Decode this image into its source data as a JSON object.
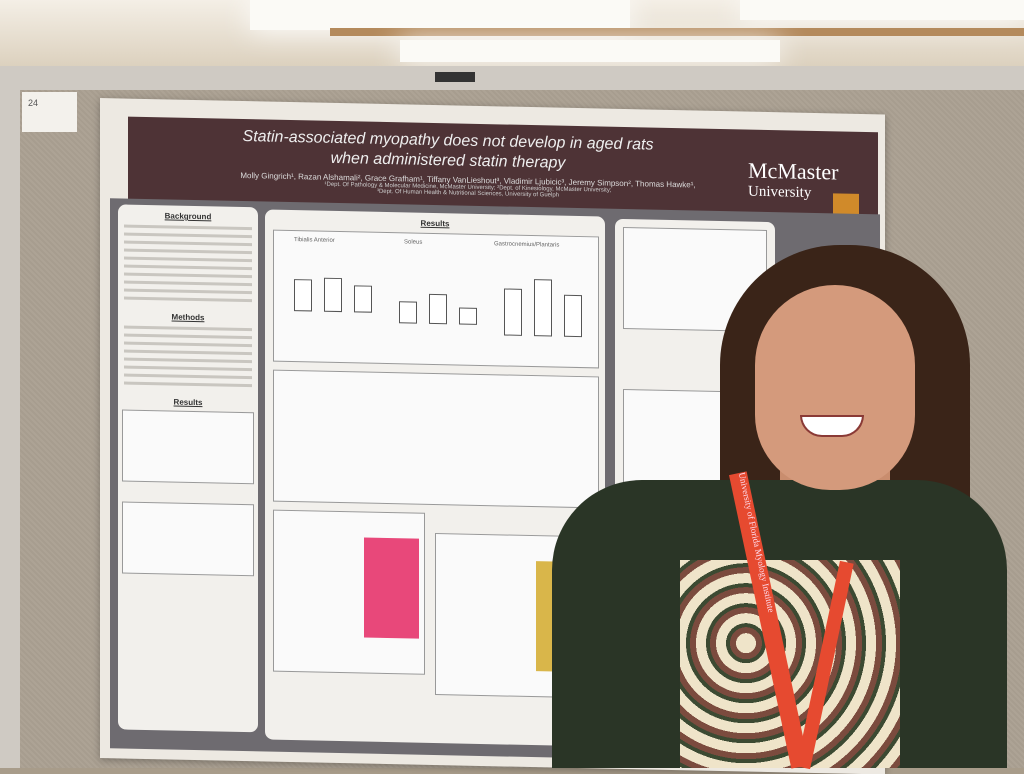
{
  "poster": {
    "number": "24",
    "title_line1": "Statin-associated myopathy does not develop in aged rats",
    "title_line2": "when administered statin therapy",
    "authors": "Molly Gingrich¹, Razan Alshamali², Grace Grafham¹, Tiffany VanLieshout³, Vladimir Ljubicic³, Jeremy Simpson², Thomas Hawke¹,",
    "affiliation1": "¹Dept. Of Pathology & Molecular Medicine, McMaster University; ²Dept. of Kinesiology, McMaster University;",
    "affiliation2": "³Dept. Of Human Health & Nutritional Sciences, University of Guelph",
    "logo_line1": "McMaster",
    "logo_line2": "University",
    "sections": {
      "background": "Background",
      "methods": "Methods",
      "results_left": "Results",
      "results_main": "Results"
    },
    "figure_labels": [
      "Tibialis Anterior",
      "Soleus",
      "Gastrocnemius/Plantaris"
    ]
  },
  "lanyard_text": "University of Florida Myology Institute",
  "colors": {
    "banner": "#4e3336",
    "lanyard": "#e64a30",
    "stain_pink": "#e8487a",
    "stain_yellow": "#d9b64a"
  }
}
